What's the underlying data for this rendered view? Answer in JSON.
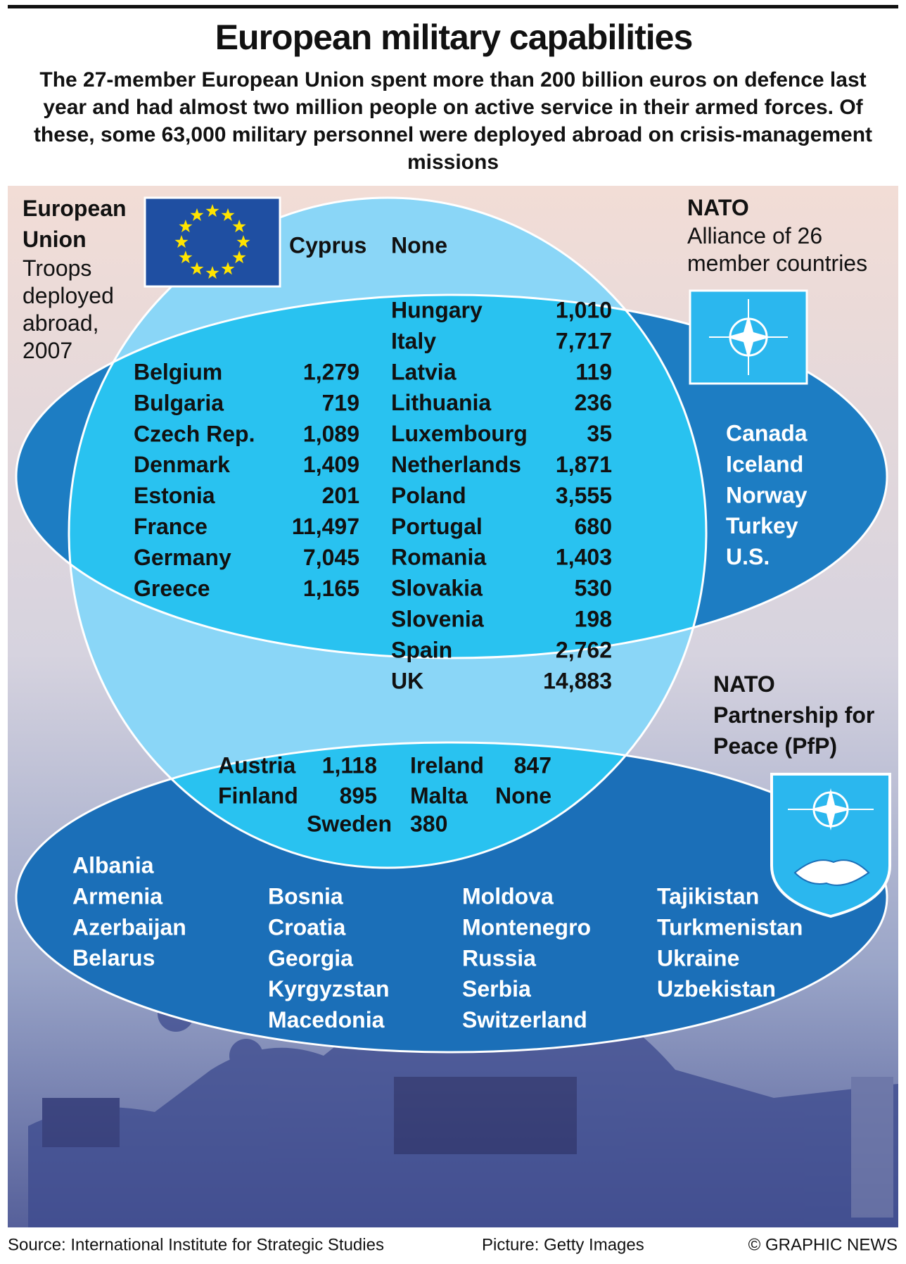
{
  "header": {
    "title": "European military capabilities",
    "subtitle": "The 27-member European Union spent more than 200 billion euros on defence last year and had almost two million people on active service in their armed forces. Of these, some 63,000 military personnel were deployed abroad on crisis-management missions"
  },
  "eu": {
    "label": "European Union",
    "caption": "Troops deployed abroad, 2007",
    "eu_only": [
      {
        "country": "Cyprus",
        "troops": "None"
      }
    ]
  },
  "nato": {
    "label": "NATO",
    "caption": "Alliance of 26 member countries",
    "members": [
      "Canada",
      "Iceland",
      "Norway",
      "Turkey",
      "U.S."
    ]
  },
  "eu_nato": {
    "left": [
      {
        "country": "Belgium",
        "troops": "1,279"
      },
      {
        "country": "Bulgaria",
        "troops": "719"
      },
      {
        "country": "Czech Rep.",
        "troops": "1,089"
      },
      {
        "country": "Denmark",
        "troops": "1,409"
      },
      {
        "country": "Estonia",
        "troops": "201"
      },
      {
        "country": "France",
        "troops": "11,497"
      },
      {
        "country": "Germany",
        "troops": "7,045"
      },
      {
        "country": "Greece",
        "troops": "1,165"
      }
    ],
    "right": [
      {
        "country": "Hungary",
        "troops": "1,010"
      },
      {
        "country": "Italy",
        "troops": "7,717"
      },
      {
        "country": "Latvia",
        "troops": "119"
      },
      {
        "country": "Lithuania",
        "troops": "236"
      },
      {
        "country": "Luxembourg",
        "troops": "35"
      },
      {
        "country": "Netherlands",
        "troops": "1,871"
      },
      {
        "country": "Poland",
        "troops": "3,555"
      },
      {
        "country": "Portugal",
        "troops": "680"
      },
      {
        "country": "Romania",
        "troops": "1,403"
      },
      {
        "country": "Slovakia",
        "troops": "530"
      },
      {
        "country": "Slovenia",
        "troops": "198"
      },
      {
        "country": "Spain",
        "troops": "2,762"
      },
      {
        "country": "UK",
        "troops": "14,883"
      }
    ]
  },
  "pfp": {
    "label": "NATO Partnership for Peace (PfP)",
    "members": [
      "Albania",
      "Armenia",
      "Azerbaijan",
      "Belarus",
      "Bosnia",
      "Croatia",
      "Georgia",
      "Kyrgyzstan",
      "Macedonia",
      "Moldova",
      "Montenegro",
      "Russia",
      "Serbia",
      "Switzerland",
      "Tajikistan",
      "Turkmenistan",
      "Ukraine",
      "Uzbekistan"
    ]
  },
  "eu_pfp": [
    {
      "country": "Austria",
      "troops": "1,118"
    },
    {
      "country": "Ireland",
      "troops": "847"
    },
    {
      "country": "Finland",
      "troops": "895"
    },
    {
      "country": "Malta",
      "troops": "None"
    },
    {
      "country": "Sweden",
      "troops": "380"
    }
  ],
  "footer": {
    "source": "Source: International Institute for Strategic Studies",
    "picture": "Picture: Getty Images",
    "copyright": "© GRAPHIC NEWS"
  }
}
